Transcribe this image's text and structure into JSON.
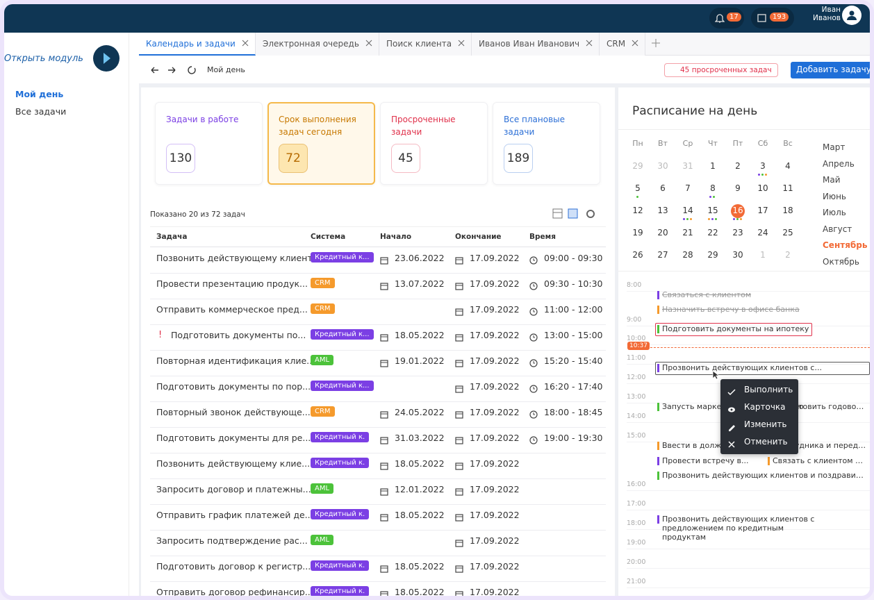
{
  "header": {
    "notifications": "17",
    "messages": "193",
    "user": "Иван Иванов"
  },
  "sidebar": {
    "open_module": "Открыть модуль",
    "nav": [
      {
        "label": "Мой день",
        "active": true
      },
      {
        "label": "Все задачи",
        "active": false
      }
    ]
  },
  "tabs": [
    {
      "label": "Календарь и задачи",
      "active": true
    },
    {
      "label": "Электронная очередь",
      "active": false
    },
    {
      "label": "Поиск клиента",
      "active": false
    },
    {
      "label": "Иванов Иван Иванович",
      "active": false
    },
    {
      "label": "CRM",
      "active": false
    }
  ],
  "toolbar": {
    "breadcrumb": "Мой день",
    "overdue": "45 просроченных задач",
    "add_button": "Добавить задачу"
  },
  "cards": [
    {
      "label": "Задачи в работе",
      "value": "130",
      "color": "#7b3fe4",
      "selected": false
    },
    {
      "label": "Срок выполнения задач сегодня",
      "value": "72",
      "color": "#c77800",
      "selected": true
    },
    {
      "label": "Просроченные задачи",
      "value": "45",
      "color": "#e0304a",
      "selected": false
    },
    {
      "label": "Все плановые задачи",
      "value": "189",
      "color": "#2c6fd6",
      "selected": false
    }
  ],
  "table": {
    "shown": "Показано 20 из 72 задач",
    "columns": [
      "Задача",
      "Система",
      "Начало",
      "Окончание",
      "Время"
    ],
    "rows": [
      {
        "task": "Позвонить действующему клиент",
        "system": "Кредитный к...",
        "system_color": "#7b3fe4",
        "start": "23.06.2022",
        "end": "17.09.2022",
        "time": "09:00 - 09:30"
      },
      {
        "task": "Провести презентацию продук...",
        "system": "CRM",
        "system_color": "#f59a2c",
        "start": "13.07.2022",
        "end": "17.09.2022",
        "time": "09:30 - 10:30"
      },
      {
        "task": "Отправить коммерческое пред...",
        "system": "CRM",
        "system_color": "#f59a2c",
        "end": "17.09.2022",
        "time": "11:00 - 12:00"
      },
      {
        "flag": "!",
        "task": "Подготовить документы по...",
        "system": "Кредитный к...",
        "system_color": "#7b3fe4",
        "start": "18.05.2022",
        "end": "17.09.2022",
        "time": "13:00 - 15:00"
      },
      {
        "task": "Повторная идентификация клие...",
        "system": "AML",
        "system_color": "#4cc23a",
        "start": "19.01.2022",
        "end": "17.09.2022",
        "time": "15:20 - 15:40"
      },
      {
        "task": "Подготовить документы по пор...",
        "system": "Кредитный к...",
        "system_color": "#7b3fe4",
        "end": "17.09.2022",
        "time": "16:20 - 17:40"
      },
      {
        "task": "Повторный звонок действующе...",
        "system": "CRM",
        "system_color": "#f59a2c",
        "start": "24.05.2022",
        "end": "17.09.2022",
        "time": "18:00 - 18:45"
      },
      {
        "task": "Подготовить документы для ре...",
        "system": "Кредитный к.",
        "system_color": "#7b3fe4",
        "start": "31.03.2022",
        "end": "17.09.2022",
        "time": "19:00 - 19:30"
      },
      {
        "task": "Позвонить действующему клие...",
        "system": "Кредитный к.",
        "system_color": "#7b3fe4",
        "start": "18.05.2022",
        "end": "17.09.2022"
      },
      {
        "task": "Запросить договор и платежны...",
        "system": "AML",
        "system_color": "#4cc23a",
        "start": "12.01.2022",
        "end": "17.09.2022"
      },
      {
        "task": "Отправить график платежей де...",
        "system": "Кредитный к.",
        "system_color": "#7b3fe4",
        "start": "18.05.2022",
        "end": "17.09.2022"
      },
      {
        "task": "Запросить подтверждение рас...",
        "system": "AML",
        "system_color": "#4cc23a",
        "end": "17.09.2022"
      },
      {
        "task": "Подготовить договор к регистр...",
        "system": "Кредитный к.",
        "system_color": "#7b3fe4",
        "start": "18.05.2022",
        "end": "17.09.2022"
      },
      {
        "task": "Отправить договор рефинансир...",
        "system": "Кредитный к.",
        "system_color": "#7b3fe4",
        "start": "18.05.2022",
        "end": "17.09.2022"
      }
    ]
  },
  "schedule": {
    "title": "Расписание на день",
    "weekdays": [
      "Пн",
      "Вт",
      "Ср",
      "Чт",
      "Пт",
      "Сб",
      "Вс"
    ],
    "days": [
      {
        "d": "29",
        "muted": true
      },
      {
        "d": "30",
        "muted": true
      },
      {
        "d": "31",
        "muted": true
      },
      {
        "d": "1"
      },
      {
        "d": "2"
      },
      {
        "d": "3"
      },
      {
        "d": "4"
      },
      {
        "d": "5"
      },
      {
        "d": "6"
      },
      {
        "d": "7"
      },
      {
        "d": "8"
      },
      {
        "d": "9"
      },
      {
        "d": "10"
      },
      {
        "d": "11"
      },
      {
        "d": "12"
      },
      {
        "d": "13"
      },
      {
        "d": "14"
      },
      {
        "d": "15"
      },
      {
        "d": "16",
        "selected": true
      },
      {
        "d": "17"
      },
      {
        "d": "18"
      },
      {
        "d": "19"
      },
      {
        "d": "20"
      },
      {
        "d": "21"
      },
      {
        "d": "22"
      },
      {
        "d": "23"
      },
      {
        "d": "24"
      },
      {
        "d": "25"
      },
      {
        "d": "26"
      },
      {
        "d": "27"
      },
      {
        "d": "28"
      },
      {
        "d": "29"
      },
      {
        "d": "30"
      },
      {
        "d": "1",
        "muted": true
      },
      {
        "d": "2",
        "muted": true
      }
    ],
    "months": [
      {
        "m": "Март"
      },
      {
        "m": "Апрель"
      },
      {
        "m": "Май"
      },
      {
        "m": "Июнь"
      },
      {
        "m": "Июль"
      },
      {
        "m": "Август"
      },
      {
        "m": "Сентябрь",
        "active": true
      },
      {
        "m": "Октябрь"
      }
    ],
    "times": [
      "8:00",
      "9:00",
      "10:00",
      "11:00",
      "12:00",
      "13:00",
      "14:00",
      "15:00",
      "16:00",
      "17:00",
      "18:00",
      "19:00",
      "20:00",
      "21:00"
    ],
    "now": "10:37",
    "events": [
      {
        "text": "Связаться с клиентом",
        "color": "#7b3fe4",
        "done": true
      },
      {
        "text": "Назначить встречу в офисе банка",
        "color": "#f59a2c",
        "done": true
      },
      {
        "text": "Подготовить документы на ипотеку",
        "color": "#4cc23a",
        "boxed": "#e0304a"
      },
      {
        "text": "Прозвонить действующих клиентов с...",
        "color": "#7b3fe4",
        "boxed": "#555"
      },
      {
        "text": "Запусть маркетинговую кампанию",
        "color": "#4cc23a"
      },
      {
        "text": "Подготовить годовой...",
        "color": "#4cc23a"
      },
      {
        "text": "Ввести в должность нового сотрудника и переда...",
        "color": "#f59a2c"
      },
      {
        "text": "Провести встречу в...",
        "color": "#7b3fe4"
      },
      {
        "text": "Связать с клиентом по...",
        "color": "#f59a2c"
      },
      {
        "text": "Прозвонить действующих клиентов и поздравить...",
        "color": "#4cc23a"
      },
      {
        "text": "Прозвонить действующих клиентов с предложением по кредитным продуктам",
        "color": "#7b3fe4"
      }
    ],
    "menu": [
      "Выполнить",
      "Карточка",
      "Изменить",
      "Отменить"
    ]
  }
}
